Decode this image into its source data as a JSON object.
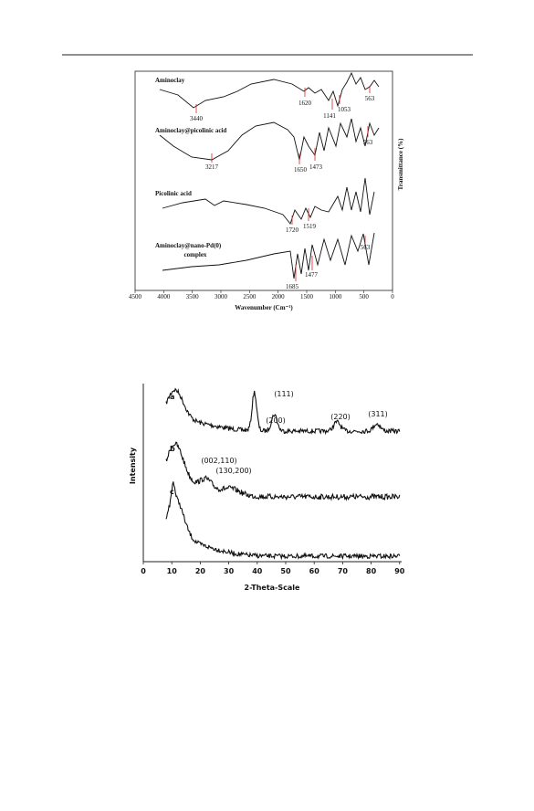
{
  "figure1": {
    "spectra": [
      "Aminoclay",
      "Aminoclay@picolinic acid",
      "Picolinic acid",
      "Aminoclay@nano-Pd(0)",
      "complex"
    ],
    "peaks": [
      "3440",
      "1620",
      "1141",
      "1053",
      "563",
      "3217",
      "1650",
      "1473",
      "563",
      "1720",
      "1519",
      "1685",
      "1477",
      "563"
    ],
    "xticks": [
      4500,
      4000,
      3500,
      3000,
      2500,
      2000,
      1500,
      1000,
      500,
      0
    ],
    "xlabel": "Wavenumber (Cm⁻¹)",
    "ylabel": "Transmittance (%)"
  },
  "figure2": {
    "samples": [
      "a",
      "b",
      "c"
    ],
    "peaks": [
      "(111)",
      "(200)",
      "(220)",
      "(311)",
      "(002,110)",
      "(130,200)"
    ],
    "xticks": [
      0,
      10,
      20,
      30,
      40,
      50,
      60,
      70,
      80,
      90
    ],
    "xlabel": "2-Theta-Scale",
    "ylabel": "Intensity"
  }
}
